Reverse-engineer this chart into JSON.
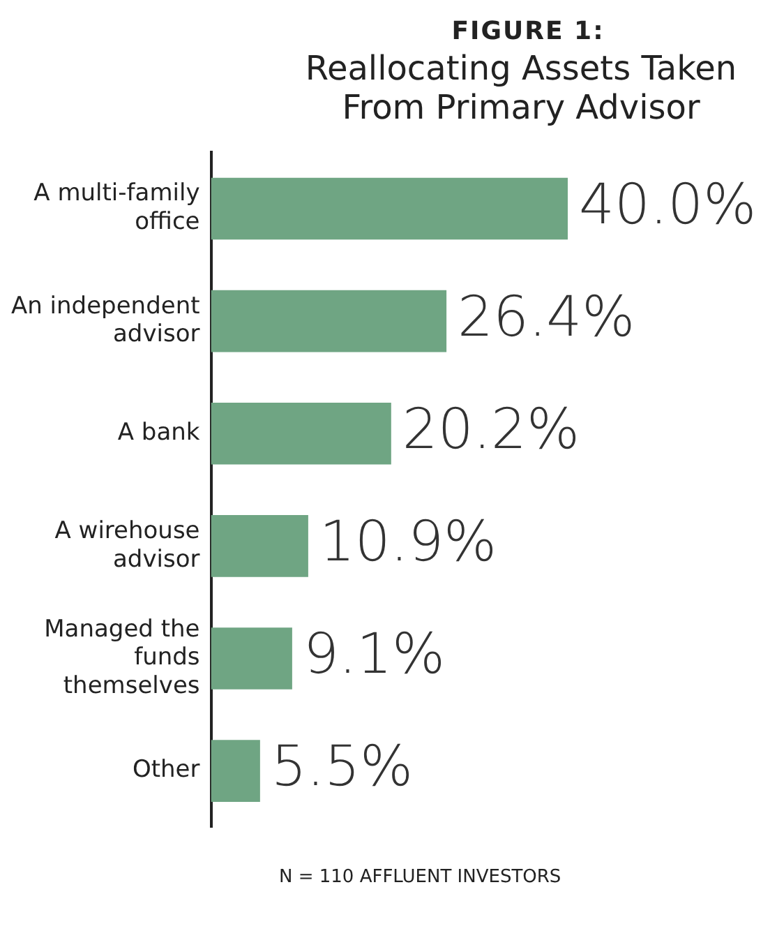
{
  "chart_data": {
    "type": "bar",
    "orientation": "horizontal",
    "subtitle": "FIGURE 1:",
    "title": "Reallocating Assets Taken From Primary Advisor",
    "categories": [
      "A multi-family office",
      "An independent advisor",
      "A bank",
      "A wirehouse advisor",
      "Managed the funds themselves",
      "Other"
    ],
    "values": [
      40.0,
      26.4,
      20.2,
      10.9,
      9.1,
      5.5
    ],
    "value_labels": [
      "40.0%",
      "26.4%",
      "20.2%",
      "10.9%",
      "9.1%",
      "5.5%"
    ],
    "color": "#6fa583",
    "annotations": [
      "N = 110 AFFLUENT INVESTORS"
    ],
    "grid": false,
    "legend": false
  }
}
